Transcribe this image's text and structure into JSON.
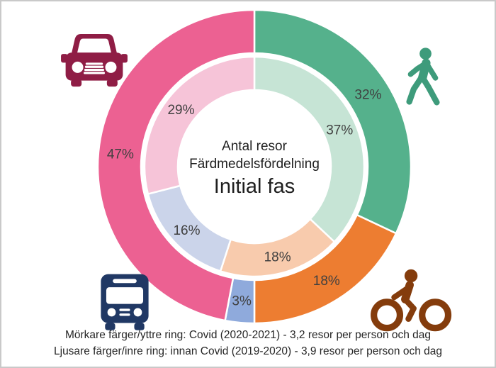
{
  "window": {
    "background": "#ffffff",
    "border_color": "#c9c9c9"
  },
  "chart_data": {
    "type": "donut",
    "title": "Antal resor Färdmedelsfördelning — Initial fas",
    "center_title": {
      "line1": "Antal resor",
      "line2": "Färdmedelsfördelning",
      "line3": "Initial fas"
    },
    "categories": [
      "walk",
      "bike",
      "bus",
      "car"
    ],
    "label_color": "#404040",
    "series": [
      {
        "name": "Covid (2020-2021)",
        "ring": "outer",
        "description": "Mörkare färger/yttre ring",
        "trips_per_person_per_day": "3,2",
        "values": [
          32,
          18,
          3,
          47
        ],
        "labels": [
          "32%",
          "18%",
          "3%",
          "47%"
        ],
        "colors": [
          "#55B18C",
          "#ED7D31",
          "#8FAADC",
          "#EC6192"
        ]
      },
      {
        "name": "innan Covid (2019-2020)",
        "ring": "inner",
        "description": "Ljusare färger/inre ring",
        "trips_per_person_per_day": "3,9",
        "values": [
          37,
          18,
          16,
          29
        ],
        "labels": [
          "37%",
          "18%",
          "16%",
          "29%"
        ],
        "colors": [
          "#C6E4D5",
          "#F8CBAD",
          "#CBD4EA",
          "#F6C4D8"
        ]
      }
    ],
    "legend_position": "none",
    "start_angle_deg": 0,
    "direction": "clockwise"
  },
  "icons": {
    "car": {
      "name": "car-icon",
      "color": "#8F1D45"
    },
    "pedestrian": {
      "name": "pedestrian-icon",
      "color": "#3E9B7B"
    },
    "bus": {
      "name": "bus-icon",
      "color": "#203864"
    },
    "cyclist": {
      "name": "cyclist-icon",
      "color": "#843C0C"
    }
  },
  "footnote": {
    "line1": "Mörkare färger/yttre ring: Covid (2020-2021) - 3,2 resor per person och dag",
    "line2": "Ljusare färger/inre ring: innan Covid (2019-2020) - 3,9 resor per person och dag"
  }
}
